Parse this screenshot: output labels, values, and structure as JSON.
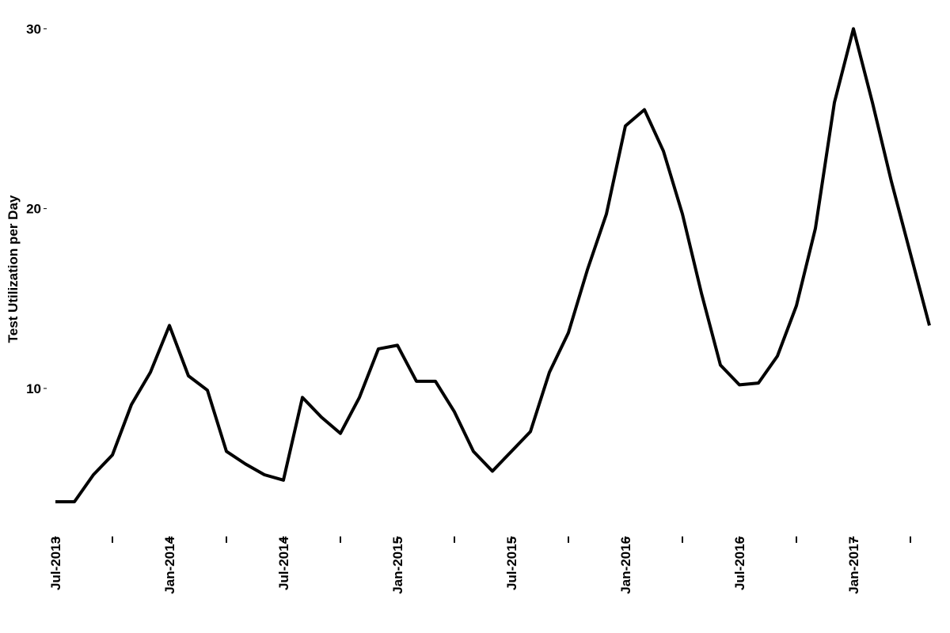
{
  "chart_data": {
    "type": "line",
    "y_label": "Test Utilization per Day",
    "x": [
      "2013-07",
      "2013-08",
      "2013-09",
      "2013-10",
      "2013-11",
      "2013-12",
      "2014-01",
      "2014-02",
      "2014-03",
      "2014-04",
      "2014-05",
      "2014-06",
      "2014-07",
      "2014-08",
      "2014-09",
      "2014-10",
      "2014-11",
      "2014-12",
      "2015-01",
      "2015-02",
      "2015-03",
      "2015-04",
      "2015-05",
      "2015-06",
      "2015-07",
      "2015-08",
      "2015-09",
      "2015-10",
      "2015-11",
      "2015-12",
      "2016-01",
      "2016-02",
      "2016-03",
      "2016-04",
      "2016-05",
      "2016-06",
      "2016-07",
      "2016-08",
      "2016-09",
      "2016-10",
      "2016-11",
      "2016-12",
      "2017-01",
      "2017-02",
      "2017-03",
      "2017-04",
      "2017-05"
    ],
    "series": [
      {
        "color": "#000000",
        "values": [
          3.7,
          3.7,
          5.2,
          6.3,
          9.1,
          10.9,
          13.5,
          10.7,
          9.9,
          6.5,
          5.8,
          5.2,
          4.9,
          9.5,
          8.4,
          7.5,
          9.5,
          12.2,
          12.4,
          10.4,
          10.4,
          8.7,
          6.5,
          5.4,
          6.5,
          7.6,
          10.9,
          13.1,
          16.6,
          19.7,
          24.6,
          25.5,
          23.2,
          19.7,
          15.3,
          11.3,
          10.2,
          10.3,
          11.8,
          14.6,
          18.9,
          25.9,
          30.0,
          25.9,
          21.5,
          17.5,
          13.5
        ]
      }
    ],
    "xticks": [
      "2013-07",
      "2013-10",
      "2014-01",
      "2014-04",
      "2014-07",
      "2014-10",
      "2015-01",
      "2015-04",
      "2015-07",
      "2015-10",
      "2016-01",
      "2016-04",
      "2016-07",
      "2016-10",
      "2017-01",
      "2017-04"
    ],
    "xtick_labels": [
      "Jul-2013",
      null,
      "Jan-2014",
      null,
      "Jul-2014",
      null,
      "Jan-2015",
      null,
      "Jul-2015",
      null,
      "Jan-2016",
      null,
      "Jul-2016",
      null,
      "Jan-2017",
      null
    ],
    "ylim": [
      3,
      30.5
    ],
    "yticks": [
      10,
      20,
      30
    ]
  }
}
